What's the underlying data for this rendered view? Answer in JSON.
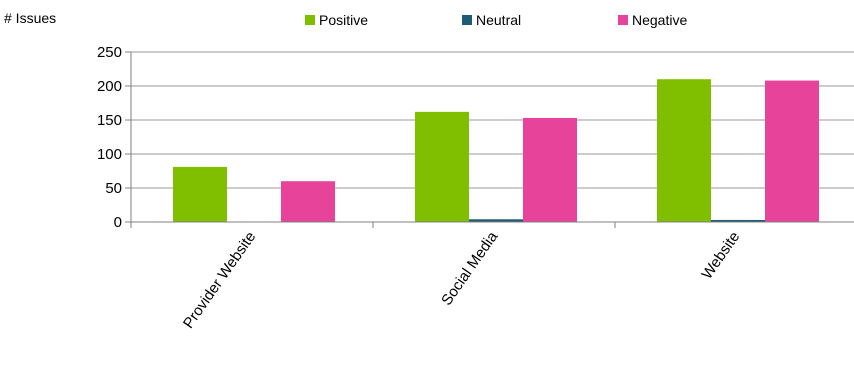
{
  "chart_data": {
    "type": "bar",
    "title": "",
    "xlabel": "",
    "ylabel": "# Issues",
    "ylim": [
      0,
      250
    ],
    "yticks": [
      0,
      50,
      100,
      150,
      200,
      250
    ],
    "grid": true,
    "legend_position": "top",
    "categories": [
      "Provider Website",
      "Social Media",
      "Website"
    ],
    "series": [
      {
        "name": "Positive",
        "color": "#7fbf00",
        "values": [
          81,
          162,
          210
        ]
      },
      {
        "name": "Neutral",
        "color": "#1f5c73",
        "values": [
          0,
          4,
          3
        ]
      },
      {
        "name": "Negative",
        "color": "#e8439a",
        "values": [
          60,
          153,
          208
        ]
      }
    ]
  }
}
